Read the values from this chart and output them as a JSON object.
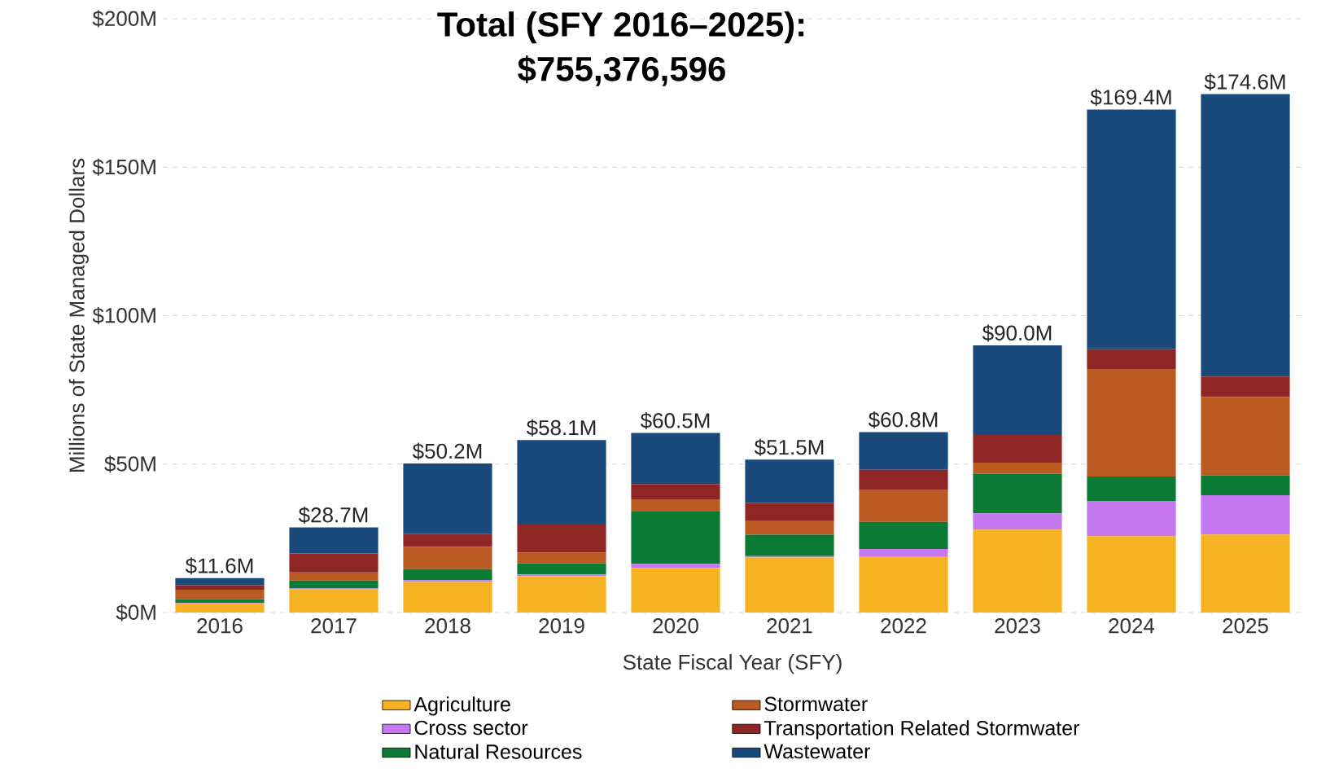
{
  "chart_data": {
    "type": "bar",
    "stacked": true,
    "title": "Total (SFY 2016–2025):",
    "subtitle": "$755,376,596",
    "xlabel": "State Fiscal Year (SFY)",
    "ylabel": "Millions of State Managed Dollars",
    "categories": [
      "2016",
      "2017",
      "2018",
      "2019",
      "2020",
      "2021",
      "2022",
      "2023",
      "2024",
      "2025"
    ],
    "series": [
      {
        "name": "Agriculture",
        "color": "#f5b324",
        "values": [
          3.1,
          7.8,
          10.3,
          12.3,
          15.0,
          18.5,
          18.9,
          27.9,
          25.7,
          26.3
        ]
      },
      {
        "name": "Cross sector",
        "color": "#c578f0",
        "values": [
          0.2,
          0.3,
          0.6,
          0.5,
          1.4,
          0.5,
          2.5,
          5.5,
          11.9,
          13.2
        ]
      },
      {
        "name": "Natural Resources",
        "color": "#0a7a34",
        "values": [
          1.2,
          2.7,
          3.7,
          3.7,
          17.8,
          7.2,
          9.1,
          13.3,
          8.2,
          6.7
        ]
      },
      {
        "name": "Stormwater",
        "color": "#bc5a24",
        "values": [
          3.2,
          2.7,
          7.5,
          3.7,
          3.9,
          4.8,
          10.7,
          3.8,
          36.0,
          26.4
        ]
      },
      {
        "name": "Transportation Related Stormwater",
        "color": "#8e2626",
        "values": [
          1.5,
          6.4,
          4.3,
          9.7,
          5.2,
          5.9,
          6.9,
          9.3,
          6.9,
          6.9
        ]
      },
      {
        "name": "Wastewater",
        "color": "#1a4a7c",
        "values": [
          2.4,
          8.8,
          23.8,
          28.2,
          17.2,
          14.6,
          12.7,
          30.2,
          80.7,
          95.1
        ]
      }
    ],
    "totals": [
      "$11.6M",
      "$28.7M",
      "$50.2M",
      "$58.1M",
      "$60.5M",
      "$51.5M",
      "$60.8M",
      "$90.0M",
      "$169.4M",
      "$174.6M"
    ],
    "ylim": [
      0,
      200
    ],
    "yticks": [
      {
        "value": 0,
        "label": "$0M"
      },
      {
        "value": 50,
        "label": "$50M"
      },
      {
        "value": 100,
        "label": "$100M"
      },
      {
        "value": 150,
        "label": "$150M"
      },
      {
        "value": 200,
        "label": "$200M"
      }
    ],
    "grid": "y",
    "legend": "bottom"
  }
}
